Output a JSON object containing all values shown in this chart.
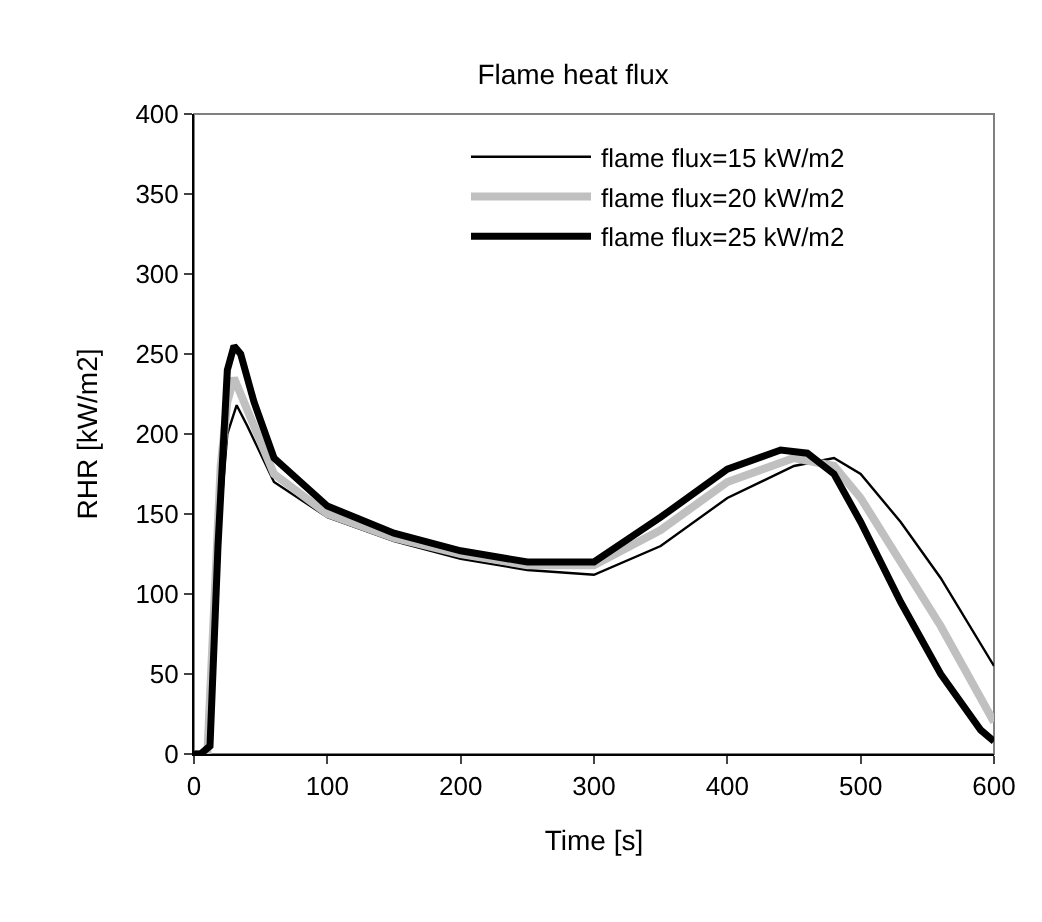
{
  "chart_data": {
    "type": "line",
    "title": "Flame heat flux",
    "xlabel": "Time [s]",
    "ylabel": "RHR [kW/m2]",
    "xlim": [
      0,
      600
    ],
    "xticks": [
      0,
      100,
      200,
      300,
      400,
      500,
      600
    ],
    "ylim": [
      0,
      400
    ],
    "yticks": [
      0,
      50,
      100,
      150,
      200,
      250,
      300,
      350,
      400
    ],
    "grid": false,
    "legend": "top",
    "marker": "none",
    "series": [
      {
        "name": "flame flux=15 kW/m2",
        "color": "#000000",
        "x": [
          0,
          10,
          15,
          20,
          25,
          32,
          40,
          60,
          100,
          150,
          200,
          250,
          300,
          350,
          400,
          450,
          480,
          500,
          530,
          560,
          600
        ],
        "values": [
          0,
          0,
          60,
          150,
          200,
          218,
          205,
          170,
          148,
          133,
          122,
          115,
          112,
          130,
          160,
          180,
          185,
          175,
          145,
          110,
          55
        ]
      },
      {
        "name": "flame flux=20 kW/m2",
        "color": "#c0c0c0",
        "x": [
          0,
          10,
          15,
          20,
          25,
          30,
          40,
          60,
          100,
          150,
          200,
          250,
          300,
          350,
          400,
          450,
          480,
          500,
          530,
          560,
          600
        ],
        "values": [
          0,
          0,
          90,
          180,
          220,
          235,
          215,
          175,
          150,
          135,
          125,
          118,
          118,
          140,
          170,
          185,
          180,
          160,
          120,
          80,
          20
        ]
      },
      {
        "name": "flame flux=25 kW/m2",
        "color": "#000000",
        "x": [
          0,
          5,
          12,
          18,
          25,
          30,
          35,
          45,
          60,
          100,
          150,
          200,
          250,
          300,
          350,
          400,
          440,
          460,
          480,
          500,
          530,
          560,
          590,
          600
        ],
        "values": [
          0,
          0,
          5,
          130,
          240,
          255,
          250,
          220,
          185,
          155,
          138,
          127,
          120,
          120,
          148,
          178,
          190,
          188,
          175,
          145,
          95,
          50,
          15,
          8
        ]
      }
    ]
  }
}
